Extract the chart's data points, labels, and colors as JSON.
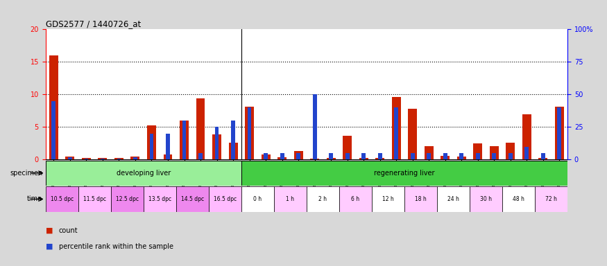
{
  "title": "GDS2577 / 1440726_at",
  "samples": [
    "GSM161128",
    "GSM161129",
    "GSM161130",
    "GSM161131",
    "GSM161132",
    "GSM161133",
    "GSM161134",
    "GSM161135",
    "GSM161136",
    "GSM161137",
    "GSM161138",
    "GSM161139",
    "GSM161108",
    "GSM161109",
    "GSM161110",
    "GSM161111",
    "GSM161112",
    "GSM161113",
    "GSM161114",
    "GSM161115",
    "GSM161116",
    "GSM161117",
    "GSM161118",
    "GSM161119",
    "GSM161120",
    "GSM161121",
    "GSM161122",
    "GSM161123",
    "GSM161124",
    "GSM161125",
    "GSM161126",
    "GSM161127"
  ],
  "count_values": [
    16.0,
    0.5,
    0.3,
    0.3,
    0.3,
    0.5,
    5.2,
    0.8,
    6.0,
    9.4,
    3.9,
    2.6,
    8.1,
    0.8,
    0.4,
    1.3,
    0.2,
    0.3,
    3.7,
    0.3,
    0.3,
    9.6,
    7.8,
    2.1,
    0.6,
    0.5,
    2.5,
    2.1,
    2.6,
    7.0,
    0.3,
    8.1
  ],
  "percentile_values": [
    45,
    2,
    1,
    1,
    1,
    2,
    20,
    20,
    30,
    5,
    25,
    30,
    40,
    5,
    5,
    5,
    50,
    5,
    5,
    5,
    5,
    40,
    5,
    5,
    5,
    5,
    5,
    5,
    5,
    10,
    5,
    40
  ],
  "ylim_left": [
    0,
    20
  ],
  "ylim_right": [
    0,
    100
  ],
  "yticks_left": [
    0,
    5,
    10,
    15,
    20
  ],
  "yticks_right": [
    0,
    25,
    50,
    75,
    100
  ],
  "ytick_labels_right": [
    "0",
    "25",
    "50",
    "75",
    "100%"
  ],
  "bar_color_count": "#cc2200",
  "bar_color_pct": "#2244cc",
  "bg_color": "#d8d8d8",
  "plot_bg": "#ffffff",
  "developing_color": "#99ee99",
  "regenerating_color": "#44cc44",
  "time_colors": [
    "#ee88ee",
    "#ffbbff",
    "#ee88ee",
    "#ffbbff",
    "#ee88ee",
    "#ffbbff",
    "#ffffff",
    "#ffccff",
    "#ffffff",
    "#ffccff",
    "#ffffff",
    "#ffccff",
    "#ffffff",
    "#ffccff",
    "#ffffff",
    "#ffccff"
  ],
  "time_labels": [
    "10.5 dpc",
    "11.5 dpc",
    "12.5 dpc",
    "13.5 dpc",
    "14.5 dpc",
    "16.5 dpc",
    "0 h",
    "1 h",
    "2 h",
    "6 h",
    "12 h",
    "18 h",
    "24 h",
    "30 h",
    "48 h",
    "72 h"
  ],
  "time_starts": [
    0,
    2,
    4,
    6,
    8,
    10,
    12,
    14,
    16,
    18,
    20,
    22,
    24,
    26,
    28,
    30
  ],
  "time_ends": [
    2,
    4,
    6,
    8,
    10,
    12,
    14,
    16,
    18,
    20,
    22,
    24,
    26,
    28,
    30,
    32
  ],
  "legend_count_label": "count",
  "legend_pct_label": "percentile rank within the sample"
}
